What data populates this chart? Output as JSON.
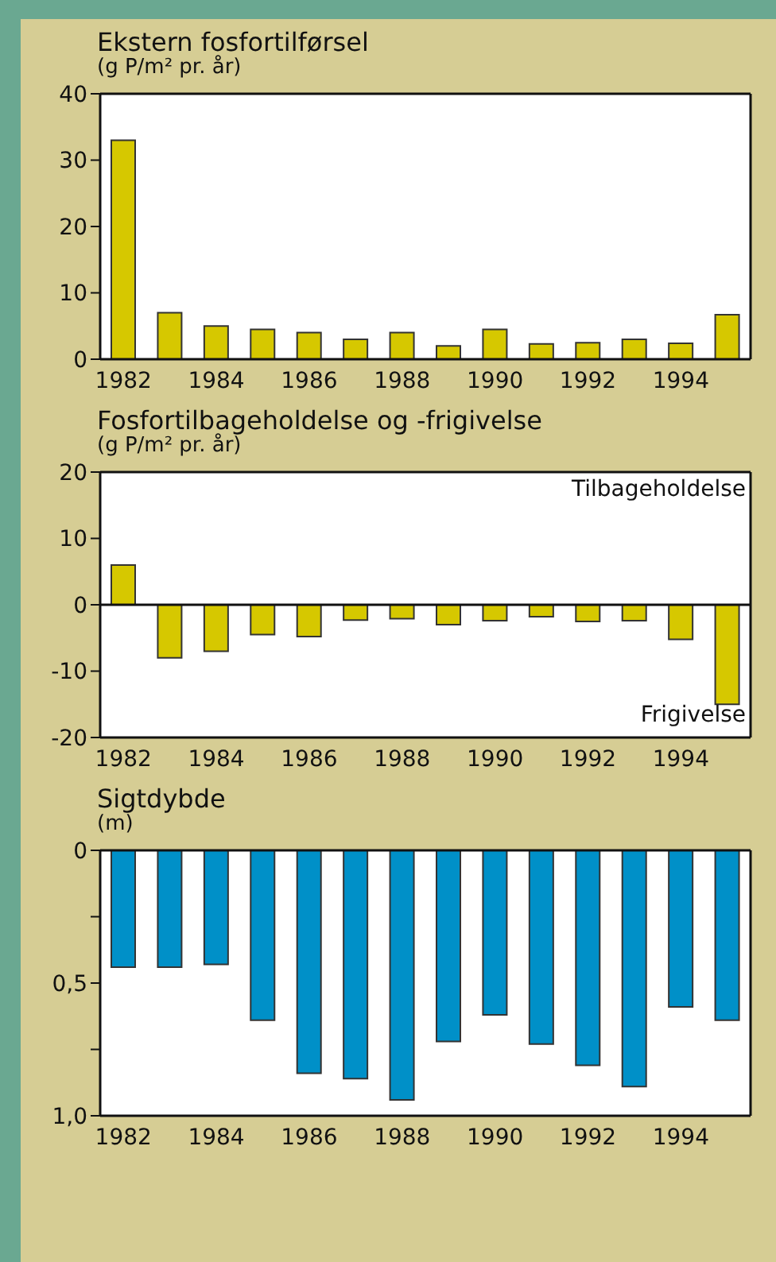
{
  "chart_data": [
    {
      "type": "bar",
      "title": "Ekstern fosfortilførsel",
      "ylabel": "(g P/m² pr. år)",
      "categories": [
        "1982",
        null,
        "1984",
        null,
        "1986",
        null,
        "1988",
        null,
        "1990",
        null,
        "1992",
        null,
        "1994",
        null
      ],
      "values": [
        33,
        7,
        5,
        4.5,
        4,
        3,
        4,
        2,
        4.5,
        2.3,
        2.5,
        3,
        2.4,
        6.7
      ],
      "color": "#d6c800",
      "ylim": [
        0,
        40
      ],
      "yticks": [
        0,
        10,
        20,
        30,
        40
      ],
      "grid": false,
      "legend": false
    },
    {
      "type": "bar",
      "title": "Fosfortilbageholdelse og -frigivelse",
      "ylabel": "(g P/m² pr. år)",
      "categories": [
        "1982",
        null,
        "1984",
        null,
        "1986",
        null,
        "1988",
        null,
        "1990",
        null,
        "1992",
        null,
        "1994",
        null
      ],
      "values": [
        6,
        -8,
        -7,
        -4.5,
        -4.8,
        -2.3,
        -2.1,
        -3,
        -2.4,
        -1.8,
        -2.5,
        -2.4,
        -5.2,
        -15
      ],
      "color": "#d6c800",
      "ylim": [
        -20,
        20
      ],
      "yticks": [
        -20,
        -10,
        0,
        10,
        20
      ],
      "grid": false,
      "legend": false,
      "ref_lines": [
        {
          "axis": "y",
          "value": 0,
          "label": null
        }
      ],
      "annotations": [
        "Tilbageholdelse",
        "Frigivelse"
      ]
    },
    {
      "type": "bar",
      "title": "Sigtdybde",
      "ylabel": "(m)",
      "categories": [
        "1982",
        null,
        "1984",
        null,
        "1986",
        null,
        "1988",
        null,
        "1990",
        null,
        "1992",
        null,
        "1994",
        null
      ],
      "values": [
        0.44,
        0.44,
        0.43,
        0.64,
        0.84,
        0.86,
        0.94,
        0.72,
        0.62,
        0.73,
        0.81,
        0.89,
        0.59,
        0.64
      ],
      "color": "#0090c8",
      "ylim": [
        1.0,
        0
      ],
      "yticks": [
        0,
        {
          "value": 0.25,
          "label": null
        },
        {
          "value": 0.5,
          "label": "0,5"
        },
        {
          "value": 0.75,
          "label": null
        },
        {
          "value": 1.0,
          "label": "1,0"
        }
      ],
      "grid": false,
      "legend": false
    }
  ]
}
